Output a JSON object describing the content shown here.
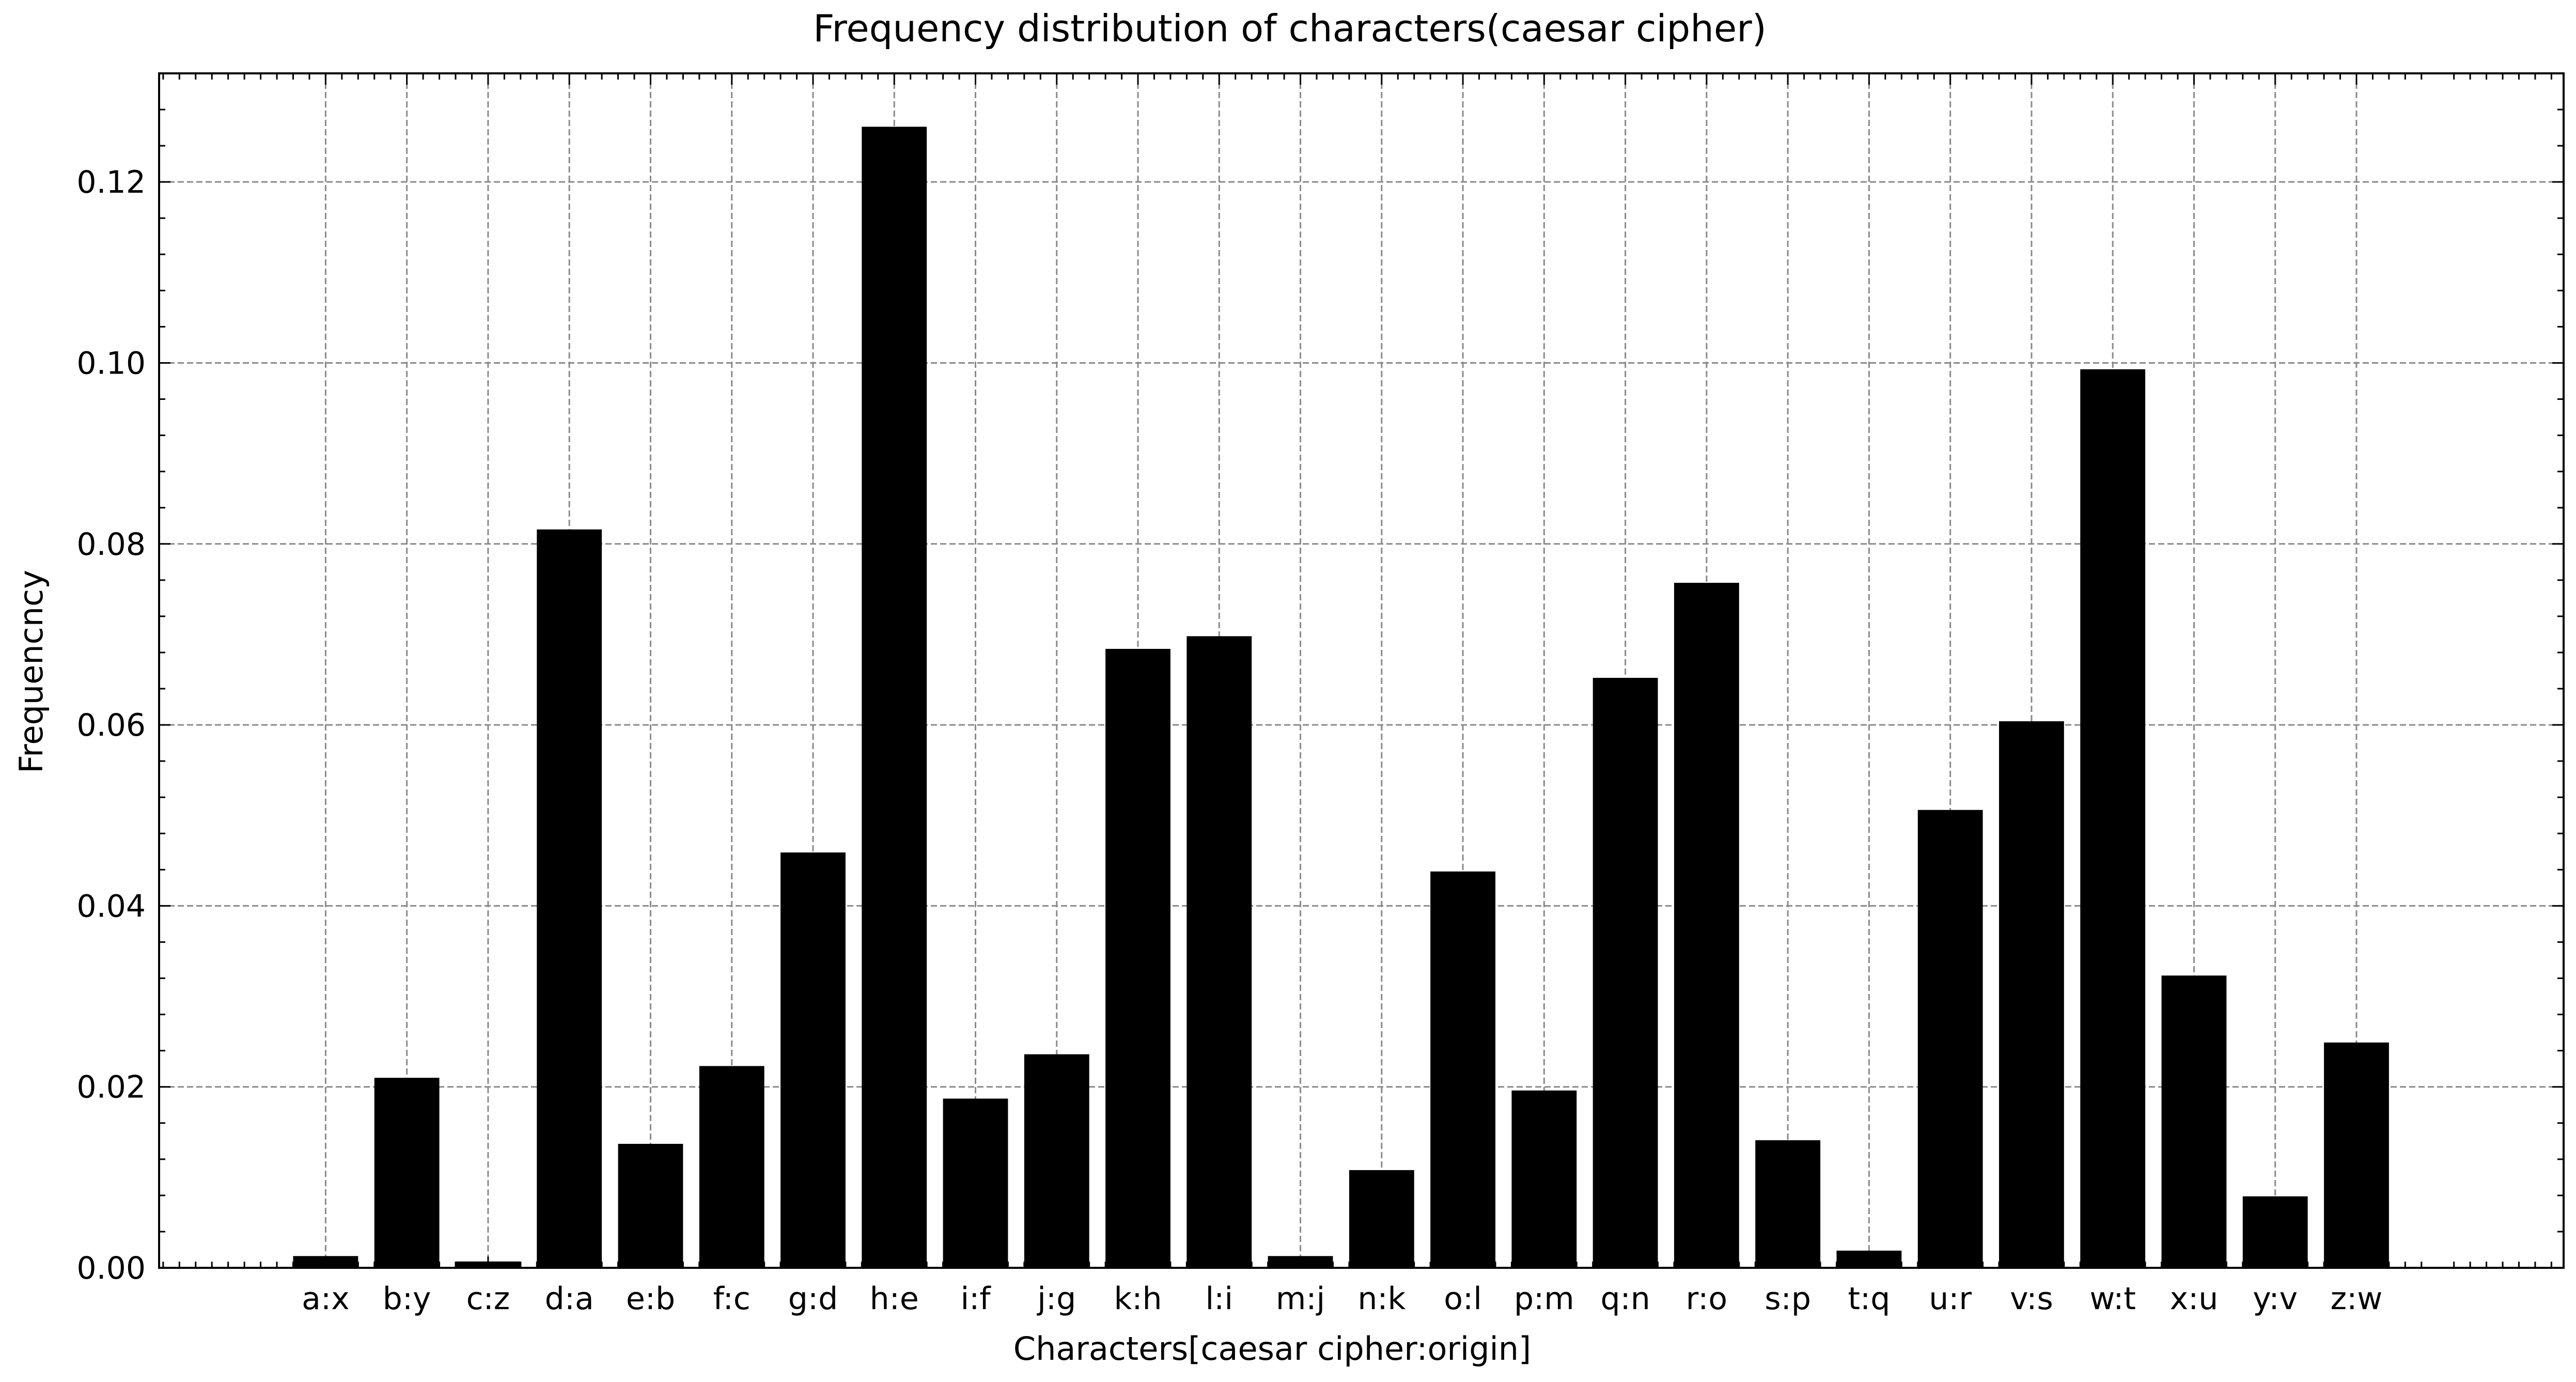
{
  "chart_data": {
    "type": "bar",
    "title": "Frequency distribution of characters(caesar cipher)",
    "xlabel": "Characters[caesar cipher:origin]",
    "ylabel": "Frequencncy",
    "categories": [
      "a:x",
      "b:y",
      "c:z",
      "d:a",
      "e:b",
      "f:c",
      "g:d",
      "h:e",
      "i:f",
      "j:g",
      "k:h",
      "l:i",
      "m:j",
      "n:k",
      "o:l",
      "p:m",
      "q:n",
      "r:o",
      "s:p",
      "t:q",
      "u:r",
      "v:s",
      "w:t",
      "x:u",
      "y:v",
      "z:w"
    ],
    "values": [
      0.0013,
      0.021,
      0.0007,
      0.0816,
      0.0137,
      0.0223,
      0.0459,
      0.1261,
      0.0187,
      0.0236,
      0.0684,
      0.0698,
      0.0013,
      0.0108,
      0.0438,
      0.0196,
      0.0652,
      0.0757,
      0.0141,
      0.0019,
      0.0506,
      0.0604,
      0.0993,
      0.0323,
      0.0079,
      0.0249
    ],
    "ylim": [
      0,
      0.132
    ],
    "yticks": [
      "0.00",
      "0.02",
      "0.04",
      "0.06",
      "0.08",
      "0.10",
      "0.12"
    ],
    "grid": true,
    "bar_color": "#000000"
  }
}
